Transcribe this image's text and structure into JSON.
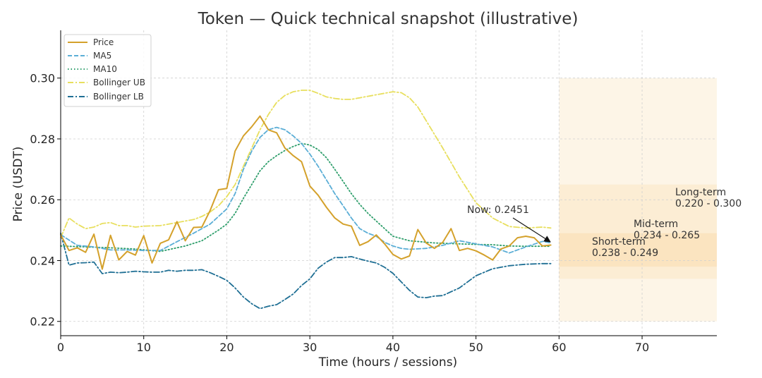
{
  "chart_data": {
    "type": "line",
    "title": "Token — Quick technical snapshot (illustrative)",
    "xlabel": "Time (hours / sessions)",
    "ylabel": "Price (USDT)",
    "xlim": [
      0,
      79
    ],
    "ylim": [
      0.2153,
      0.3157
    ],
    "x_ticks": [
      0,
      10,
      20,
      30,
      40,
      50,
      60,
      70
    ],
    "y_ticks": [
      0.22,
      0.24,
      0.26,
      0.28,
      0.3
    ],
    "x_tick_labels": [
      "0",
      "10",
      "20",
      "30",
      "40",
      "50",
      "60",
      "70"
    ],
    "y_tick_labels": [
      "0.22",
      "0.24",
      "0.26",
      "0.28",
      "0.30"
    ],
    "grid": true,
    "legend_position": "top-left",
    "series": [
      {
        "name": "Price",
        "color": "#D4A12B",
        "style": "solid",
        "x": [
          0,
          1,
          2,
          3,
          4,
          5,
          6,
          7,
          8,
          9,
          10,
          11,
          12,
          13,
          14,
          15,
          16,
          17,
          18,
          19,
          20,
          21,
          22,
          23,
          24,
          25,
          26,
          27,
          28,
          29,
          30,
          31,
          32,
          33,
          34,
          35,
          36,
          37,
          38,
          39,
          40,
          41,
          42,
          43,
          44,
          45,
          46,
          47,
          48,
          49,
          50,
          51,
          52,
          53,
          54,
          55,
          56,
          57,
          58,
          59
        ],
        "values": [
          0.2485,
          0.2433,
          0.2442,
          0.2427,
          0.2487,
          0.2372,
          0.2483,
          0.2402,
          0.243,
          0.2418,
          0.2482,
          0.2392,
          0.2457,
          0.2468,
          0.2528,
          0.2465,
          0.2509,
          0.251,
          0.2565,
          0.2633,
          0.2637,
          0.276,
          0.281,
          0.284,
          0.2875,
          0.283,
          0.282,
          0.277,
          0.2745,
          0.2725,
          0.2645,
          0.2615,
          0.2575,
          0.254,
          0.252,
          0.2513,
          0.245,
          0.2462,
          0.2484,
          0.2455,
          0.242,
          0.2405,
          0.2415,
          0.2502,
          0.2458,
          0.244,
          0.246,
          0.2505,
          0.2433,
          0.244,
          0.2432,
          0.2418,
          0.2402,
          0.2438,
          0.2448,
          0.2475,
          0.248,
          0.2475,
          0.2448,
          0.2451
        ]
      },
      {
        "name": "MA5",
        "color": "#5BAED6",
        "style": "dashed",
        "x": [
          0,
          2,
          4,
          6,
          8,
          10,
          12,
          14,
          16,
          18,
          20,
          21,
          22,
          23,
          24,
          25,
          26,
          27,
          28,
          29,
          30,
          31,
          32,
          33,
          34,
          35,
          36,
          37,
          38,
          39,
          40,
          41,
          42,
          44,
          46,
          48,
          50,
          52,
          54,
          56,
          58,
          59
        ],
        "values": [
          0.2485,
          0.245,
          0.2445,
          0.2435,
          0.2435,
          0.2433,
          0.2433,
          0.2462,
          0.249,
          0.252,
          0.257,
          0.262,
          0.27,
          0.276,
          0.2805,
          0.283,
          0.2838,
          0.283,
          0.281,
          0.2785,
          0.275,
          0.271,
          0.2665,
          0.262,
          0.258,
          0.254,
          0.2505,
          0.249,
          0.248,
          0.246,
          0.2448,
          0.244,
          0.2437,
          0.244,
          0.245,
          0.2465,
          0.2455,
          0.2445,
          0.2425,
          0.2445,
          0.2463,
          0.2458
        ]
      },
      {
        "name": "MA10",
        "color": "#2E9E6B",
        "style": "dotted",
        "x": [
          0,
          3,
          6,
          9,
          12,
          15,
          17,
          19,
          20,
          21,
          22,
          23,
          24,
          25,
          26,
          27,
          28,
          29,
          30,
          31,
          32,
          33,
          34,
          35,
          36,
          37,
          38,
          39,
          40,
          42,
          45,
          48,
          50,
          52,
          54,
          56,
          58,
          59
        ],
        "values": [
          0.2448,
          0.2445,
          0.2442,
          0.2438,
          0.243,
          0.2448,
          0.2465,
          0.25,
          0.252,
          0.2555,
          0.2605,
          0.265,
          0.2695,
          0.2725,
          0.2745,
          0.2762,
          0.2775,
          0.2785,
          0.278,
          0.2765,
          0.2738,
          0.27,
          0.266,
          0.262,
          0.2585,
          0.2555,
          0.253,
          0.2505,
          0.248,
          0.2465,
          0.2458,
          0.2455,
          0.2453,
          0.2452,
          0.2448,
          0.2447,
          0.2447,
          0.2447
        ]
      },
      {
        "name": "Bollinger UB",
        "color": "#E8DF5E",
        "style": "dashdot",
        "x": [
          0,
          1,
          2,
          3,
          4,
          5,
          6,
          7,
          8,
          9,
          10,
          12,
          14,
          16,
          17,
          18,
          19,
          20,
          21,
          22,
          23,
          24,
          25,
          26,
          27,
          28,
          29,
          30,
          31,
          32,
          33,
          34,
          35,
          36,
          38,
          40,
          41,
          42,
          43,
          44,
          46,
          48,
          50,
          52,
          54,
          56,
          58,
          59
        ],
        "values": [
          0.2475,
          0.254,
          0.252,
          0.2505,
          0.251,
          0.2522,
          0.2525,
          0.2515,
          0.2515,
          0.251,
          0.2513,
          0.2515,
          0.2525,
          0.2535,
          0.2545,
          0.256,
          0.258,
          0.261,
          0.265,
          0.271,
          0.277,
          0.283,
          0.288,
          0.292,
          0.2943,
          0.2955,
          0.296,
          0.296,
          0.295,
          0.2938,
          0.2933,
          0.293,
          0.293,
          0.2935,
          0.2945,
          0.2955,
          0.2952,
          0.2935,
          0.2905,
          0.286,
          0.277,
          0.2675,
          0.259,
          0.254,
          0.2512,
          0.2507,
          0.251,
          0.2507
        ]
      },
      {
        "name": "Bollinger LB",
        "color": "#1F6F94",
        "style": "dashdot",
        "x": [
          0,
          1,
          2,
          3,
          4,
          5,
          6,
          7,
          8,
          9,
          10,
          11,
          12,
          13,
          14,
          15,
          16,
          17,
          18,
          19,
          20,
          21,
          22,
          23,
          24,
          25,
          26,
          27,
          28,
          29,
          30,
          31,
          32,
          33,
          34,
          35,
          36,
          37,
          38,
          39,
          40,
          41,
          42,
          43,
          44,
          45,
          46,
          48,
          50,
          52,
          54,
          56,
          58,
          59
        ],
        "values": [
          0.249,
          0.2385,
          0.2392,
          0.2393,
          0.2395,
          0.2357,
          0.2362,
          0.236,
          0.2362,
          0.2365,
          0.2363,
          0.2362,
          0.2362,
          0.2368,
          0.2365,
          0.2368,
          0.2368,
          0.237,
          0.236,
          0.2348,
          0.2335,
          0.231,
          0.228,
          0.2258,
          0.2242,
          0.225,
          0.2255,
          0.2272,
          0.229,
          0.2318,
          0.234,
          0.2375,
          0.2395,
          0.241,
          0.241,
          0.2413,
          0.2405,
          0.2398,
          0.2392,
          0.2378,
          0.2358,
          0.233,
          0.2302,
          0.228,
          0.2278,
          0.2283,
          0.2285,
          0.231,
          0.235,
          0.2373,
          0.2383,
          0.2388,
          0.239,
          0.239
        ]
      }
    ],
    "annotations": [
      {
        "text": "Now: 0.2451",
        "x": 59,
        "y": 0.2451
      },
      {
        "text": "Short-term",
        "range_text": "0.238 - 0.249",
        "low": 0.238,
        "high": 0.249
      },
      {
        "text": "Mid-term",
        "range_text": "0.234 - 0.265",
        "low": 0.234,
        "high": 0.265
      },
      {
        "text": "Long-term",
        "range_text": "0.220 - 0.300",
        "low": 0.22,
        "high": 0.3
      }
    ],
    "forecast_region_x": [
      60,
      79
    ]
  }
}
